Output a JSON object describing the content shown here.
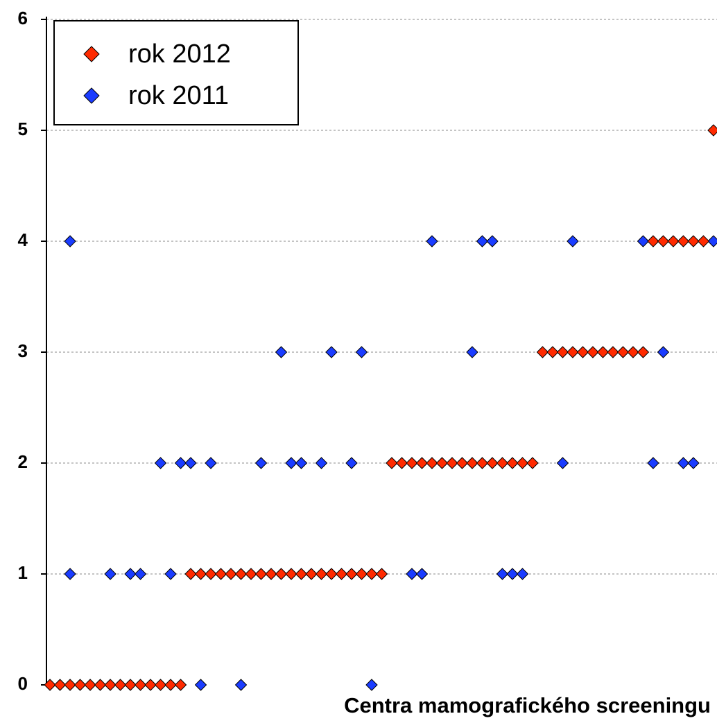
{
  "chart_data": {
    "type": "scatter",
    "x_label": "Centra mamografického screeningu",
    "xlim": [
      0.65,
      67.35
    ],
    "ylim": [
      0,
      6
    ],
    "yticks": [
      0,
      1,
      2,
      3,
      4,
      5,
      6
    ],
    "grid": true,
    "legend": "upper left",
    "series": [
      {
        "name": "rok 2012",
        "color": "#ff2a00",
        "x": [
          1,
          2,
          3,
          4,
          5,
          6,
          7,
          8,
          9,
          10,
          11,
          12,
          13,
          14,
          15,
          16,
          17,
          18,
          19,
          20,
          21,
          22,
          23,
          24,
          25,
          26,
          27,
          28,
          29,
          30,
          31,
          32,
          33,
          34,
          35,
          36,
          37,
          38,
          39,
          40,
          41,
          42,
          43,
          44,
          45,
          46,
          47,
          48,
          49,
          50,
          51,
          52,
          53,
          54,
          55,
          56,
          57,
          58,
          59,
          60,
          61,
          62,
          63,
          64,
          65,
          66,
          67
        ],
        "values": [
          0,
          0,
          0,
          0,
          0,
          0,
          0,
          0,
          0,
          0,
          0,
          0,
          0,
          0,
          1,
          1,
          1,
          1,
          1,
          1,
          1,
          1,
          1,
          1,
          1,
          1,
          1,
          1,
          1,
          1,
          1,
          1,
          1,
          1,
          2,
          2,
          2,
          2,
          2,
          2,
          2,
          2,
          2,
          2,
          2,
          2,
          2,
          2,
          2,
          3,
          3,
          3,
          3,
          3,
          3,
          3,
          3,
          3,
          3,
          3,
          4,
          4,
          4,
          4,
          4,
          4,
          5
        ]
      },
      {
        "name": "rok 2011",
        "color": "#1a3cff",
        "x": [
          3,
          3,
          7,
          9,
          10,
          12,
          13,
          14,
          15,
          16,
          17,
          20,
          22,
          24,
          25,
          26,
          28,
          29,
          31,
          32,
          33,
          37,
          38,
          39,
          43,
          44,
          45,
          46,
          47,
          48,
          52,
          53,
          60,
          61,
          62,
          64,
          65,
          67
        ],
        "values": [
          1,
          4,
          1,
          1,
          1,
          2,
          1,
          2,
          2,
          0,
          2,
          0,
          2,
          3,
          2,
          2,
          2,
          3,
          2,
          3,
          0,
          1,
          1,
          4,
          3,
          4,
          4,
          1,
          1,
          1,
          2,
          4,
          4,
          2,
          3,
          2,
          2,
          4
        ]
      }
    ]
  }
}
